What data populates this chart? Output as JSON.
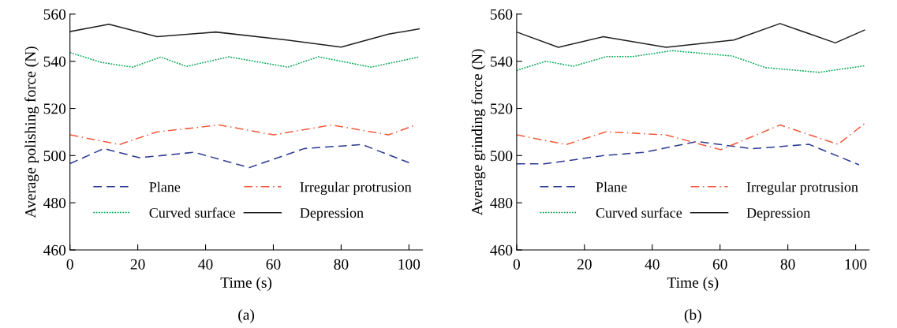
{
  "chart_data": [
    {
      "type": "line",
      "xlabel": "Time (s)",
      "ylabel": "Average polishing force (N)",
      "xlim": [
        0,
        104
      ],
      "ylim": [
        460,
        560
      ],
      "xticks": [
        0,
        20,
        40,
        60,
        80,
        100
      ],
      "yticks": [
        460,
        480,
        500,
        520,
        540,
        560
      ],
      "legend": "bottom",
      "grid": false,
      "annotations": [
        "(a)"
      ],
      "series": [
        {
          "name": "Plane",
          "color": "#2b3990",
          "line_style": "dashed",
          "x": [
            0,
            10,
            20.5,
            36.7,
            52.9,
            69.2,
            86.2,
            100
          ],
          "values": [
            496.6,
            503,
            499.1,
            501.4,
            494.9,
            503,
            504.7,
            497
          ]
        },
        {
          "name": "Irregular protrusion",
          "color": "#f05a3c",
          "line_style": "dashdot",
          "x": [
            0,
            14.6,
            25.5,
            44.1,
            60.1,
            77.2,
            94,
            102
          ],
          "values": [
            508.8,
            504.7,
            510,
            513,
            508.8,
            513,
            508.8,
            513
          ]
        },
        {
          "name": "Curved surface",
          "color": "#00a651",
          "line_style": "dotted",
          "x": [
            0,
            9.6,
            18.5,
            26.8,
            34.4,
            46.9,
            64.3,
            73.3,
            88.8,
            103
          ],
          "values": [
            543.7,
            539.4,
            537.5,
            541.8,
            537.8,
            541.9,
            537.5,
            541.9,
            537.5,
            541.8
          ]
        },
        {
          "name": "Depression",
          "color": "#231f20",
          "line_style": "solid",
          "x": [
            0,
            11.5,
            25.7,
            43,
            64,
            80,
            94,
            103
          ],
          "values": [
            552.6,
            555.7,
            550.4,
            552.4,
            549,
            546,
            551.5,
            553.7
          ]
        }
      ]
    },
    {
      "type": "line",
      "xlabel": "Time (s)",
      "ylabel": "Average grinding force (N)",
      "xlim": [
        0,
        104
      ],
      "ylim": [
        460,
        560
      ],
      "xticks": [
        0,
        20,
        40,
        60,
        80,
        100
      ],
      "yticks": [
        460,
        480,
        500,
        520,
        540,
        560
      ],
      "legend": "bottom",
      "grid": false,
      "annotations": [
        "(b)"
      ],
      "series": [
        {
          "name": "Plane",
          "color": "#2b3990",
          "line_style": "dashed",
          "x": [
            0,
            8.2,
            25.6,
            37.7,
            53.2,
            69.5,
            86.2,
            101
          ],
          "values": [
            496.5,
            496.5,
            500,
            501.4,
            506,
            502.9,
            504.8,
            496.1
          ]
        },
        {
          "name": "Irregular protrusion",
          "color": "#f05a3c",
          "line_style": "dashdot",
          "x": [
            0,
            14.6,
            26.4,
            43.9,
            60.2,
            77.7,
            94.8,
            102.6
          ],
          "values": [
            508.8,
            504.7,
            510.1,
            508.8,
            502.5,
            513,
            504.8,
            513.5
          ]
        },
        {
          "name": "Curved surface",
          "color": "#00a651",
          "line_style": "dotted",
          "x": [
            0,
            8.6,
            16.7,
            26.6,
            34.2,
            45.8,
            63.7,
            73.4,
            89.3,
            102.6
          ],
          "values": [
            536.1,
            540,
            537.9,
            542,
            542,
            544.5,
            542.2,
            537.3,
            535.3,
            538.1
          ]
        },
        {
          "name": "Depression",
          "color": "#231f20",
          "line_style": "solid",
          "x": [
            0,
            12.3,
            25.5,
            44.1,
            64.1,
            77.7,
            94,
            102.6
          ],
          "values": [
            552.4,
            545.9,
            550.4,
            545.9,
            549,
            556,
            547.8,
            553.2
          ]
        }
      ]
    }
  ]
}
